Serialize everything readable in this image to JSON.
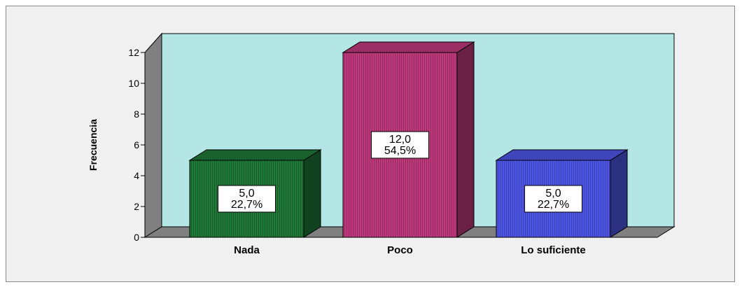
{
  "chart_data": {
    "type": "bar",
    "categories": [
      "Nada",
      "Poco",
      "Lo suficiente"
    ],
    "values": [
      5,
      12,
      5
    ],
    "data_labels": [
      [
        "5,0",
        "22,7%"
      ],
      [
        "12,0",
        "54,5%"
      ],
      [
        "5,0",
        "22,7%"
      ]
    ],
    "colors": [
      "#1f7a3a",
      "#c23a7e",
      "#4f57ea"
    ],
    "ylabel": "Frecuencia",
    "ylim": [
      0,
      12
    ],
    "yticks": [
      "0",
      "2",
      "4",
      "6",
      "8",
      "10",
      "12"
    ],
    "background_color": "#b4e6e6",
    "grid": false,
    "style": "3d"
  }
}
